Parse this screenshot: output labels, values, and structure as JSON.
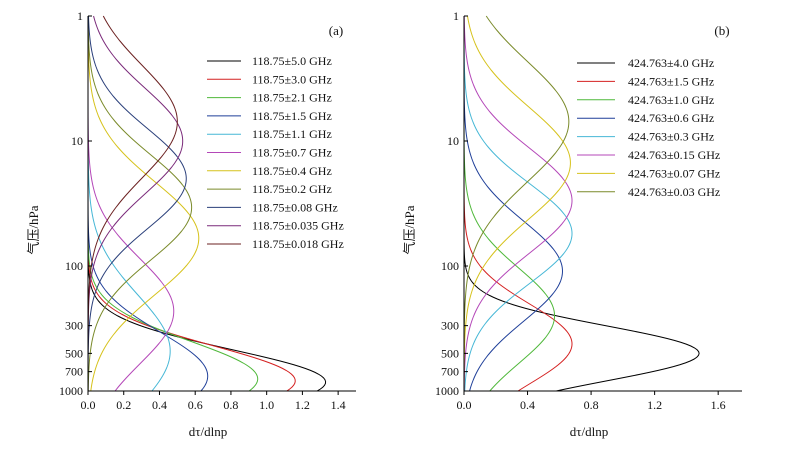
{
  "chart_data": [
    {
      "type": "line",
      "panel_label": "(a)",
      "xlabel": "dτ/dlnp",
      "ylabel": "气压/hPa",
      "xlim": [
        0.0,
        1.5
      ],
      "ylim": [
        1000,
        1
      ],
      "yscale": "log",
      "xticks": [
        "0.0",
        "0.2",
        "0.4",
        "0.6",
        "0.8",
        "1.0",
        "1.2",
        "1.4"
      ],
      "yticks": [
        1,
        10,
        100,
        300,
        500,
        700,
        1000
      ],
      "ytick_labels": [
        "1",
        "10",
        "100",
        "300",
        "500",
        "700",
        "1000"
      ],
      "legend_position": "upper-right",
      "series": [
        {
          "name": "118.75±5.0 GHz",
          "color": "#000000",
          "peak_p": 850,
          "peak_value": 1.33,
          "width": 0.26
        },
        {
          "name": "118.75±3.0 GHz",
          "color": "#d42020",
          "peak_p": 830,
          "peak_value": 1.16,
          "width": 0.28
        },
        {
          "name": "118.75±2.1 GHz",
          "color": "#4fb83a",
          "peak_p": 800,
          "peak_value": 0.95,
          "width": 0.3
        },
        {
          "name": "118.75±1.5 GHz",
          "color": "#1f3f99",
          "peak_p": 760,
          "peak_value": 0.67,
          "width": 0.35
        },
        {
          "name": "118.75±1.1 GHz",
          "color": "#46b7d6",
          "peak_p": 480,
          "peak_value": 0.46,
          "width": 0.45
        },
        {
          "name": "118.75±0.7 GHz",
          "color": "#b447b8",
          "peak_p": 230,
          "peak_value": 0.48,
          "width": 0.42
        },
        {
          "name": "118.75±0.4 GHz",
          "color": "#d6c21c",
          "peak_p": 60,
          "peak_value": 0.62,
          "width": 0.45
        },
        {
          "name": "118.75±0.2 GHz",
          "color": "#7a8a2a",
          "peak_p": 34,
          "peak_value": 0.58,
          "width": 0.42
        },
        {
          "name": "118.75±0.08 GHz",
          "color": "#2a3f7a",
          "peak_p": 20,
          "peak_value": 0.55,
          "width": 0.4
        },
        {
          "name": "118.75±0.035 GHz",
          "color": "#7a2a7a",
          "peak_p": 10,
          "peak_value": 0.53,
          "width": 0.42
        },
        {
          "name": "118.75±0.018 GHz",
          "color": "#6b2020",
          "peak_p": 7,
          "peak_value": 0.5,
          "width": 0.45
        }
      ]
    },
    {
      "type": "line",
      "panel_label": "(b)",
      "xlabel": "dτ/dlnp",
      "ylabel": "气压/hPa",
      "xlim": [
        0.0,
        1.75
      ],
      "ylim": [
        1000,
        1
      ],
      "yscale": "log",
      "xticks": [
        "0.0",
        "0.4",
        "0.8",
        "1.2",
        "1.6"
      ],
      "yticks": [
        1,
        10,
        100,
        300,
        500,
        700,
        1000
      ],
      "ytick_labels": [
        "1",
        "10",
        "100",
        "300",
        "500",
        "700",
        "1000"
      ],
      "legend_position": "upper-right",
      "series": [
        {
          "name": "424.763±4.0 GHz",
          "color": "#000000",
          "peak_p": 500,
          "peak_value": 1.48,
          "width": 0.22
        },
        {
          "name": "424.763±1.5 GHz",
          "color": "#d42020",
          "peak_p": 420,
          "peak_value": 0.68,
          "width": 0.32
        },
        {
          "name": "424.763±1.0 GHz",
          "color": "#4fb83a",
          "peak_p": 250,
          "peak_value": 0.57,
          "width": 0.38
        },
        {
          "name": "424.763±0.6 GHz",
          "color": "#1f3f99",
          "peak_p": 110,
          "peak_value": 0.62,
          "width": 0.4
        },
        {
          "name": "424.763±0.3 GHz",
          "color": "#46b7d6",
          "peak_p": 55,
          "peak_value": 0.68,
          "width": 0.4
        },
        {
          "name": "424.763±0.15 GHz",
          "color": "#b447b8",
          "peak_p": 30,
          "peak_value": 0.68,
          "width": 0.42
        },
        {
          "name": "424.763±0.07 GHz",
          "color": "#d6c21c",
          "peak_p": 15,
          "peak_value": 0.67,
          "width": 0.45
        },
        {
          "name": "424.763±0.03 GHz",
          "color": "#7a8a2a",
          "peak_p": 7,
          "peak_value": 0.66,
          "width": 0.48
        }
      ]
    }
  ]
}
